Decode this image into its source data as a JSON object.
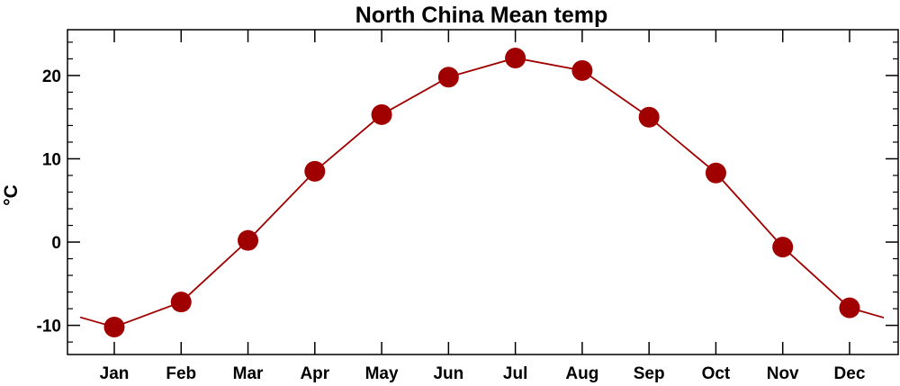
{
  "chart_data": {
    "type": "line",
    "title": "North China Mean temp",
    "xlabel": "",
    "ylabel": "°C",
    "categories": [
      "Jan",
      "Feb",
      "Mar",
      "Apr",
      "May",
      "Jun",
      "Jul",
      "Aug",
      "Sep",
      "Oct",
      "Nov",
      "Dec"
    ],
    "series": [
      {
        "values": [
          -10.2,
          -7.2,
          0.2,
          8.5,
          15.3,
          19.8,
          22.1,
          20.6,
          15.0,
          8.3,
          -0.6,
          -7.9
        ]
      }
    ],
    "ylim": [
      -13.5,
      25.5
    ],
    "yticks": [
      -10,
      0,
      10,
      20
    ],
    "color": "#a00000",
    "grid": false,
    "legend": "none"
  }
}
